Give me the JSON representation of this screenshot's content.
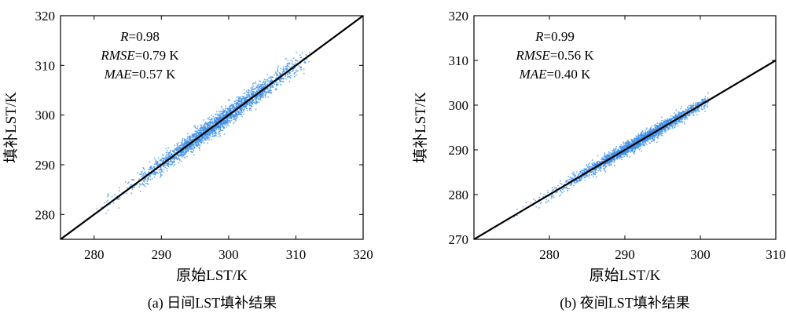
{
  "chart_data": [
    {
      "type": "scatter",
      "caption": "(a) 日间LST填补结果",
      "xlabel": "原始LST/K",
      "ylabel": "填补LST/K",
      "xlim": [
        275,
        320
      ],
      "ylim": [
        275,
        320
      ],
      "xticks": [
        280,
        290,
        300,
        310,
        320
      ],
      "yticks": [
        280,
        290,
        300,
        310,
        320
      ],
      "stats": [
        {
          "name": "R",
          "eq": "=0.98"
        },
        {
          "name": "RMSE",
          "eq": "=0.79 K"
        },
        {
          "name": "MAE",
          "eq": "=0.57 K"
        }
      ],
      "point_cloud": {
        "x_range": [
          280,
          312
        ],
        "center": 298.5,
        "spread": 0.79,
        "count": 2600
      },
      "identity_line": true,
      "grid": false,
      "point_color": "#3d8fe6"
    },
    {
      "type": "scatter",
      "caption": "(b) 夜间LST填补结果",
      "xlabel": "原始LST/K",
      "ylabel": "填补LST/K",
      "xlim": [
        270,
        310
      ],
      "ylim": [
        270,
        320
      ],
      "xticks": [
        280,
        290,
        300,
        310
      ],
      "yticks": [
        270,
        280,
        290,
        300,
        310,
        320
      ],
      "stats": [
        {
          "name": "R",
          "eq": "=0.99"
        },
        {
          "name": "RMSE",
          "eq": "=0.56 K"
        },
        {
          "name": "MAE",
          "eq": "=0.40 K"
        }
      ],
      "point_cloud": {
        "x_range": [
          275,
          301
        ],
        "center": 292,
        "spread": 0.56,
        "count": 2600
      },
      "identity_line": true,
      "grid": false,
      "point_color": "#3d8fe6"
    }
  ]
}
